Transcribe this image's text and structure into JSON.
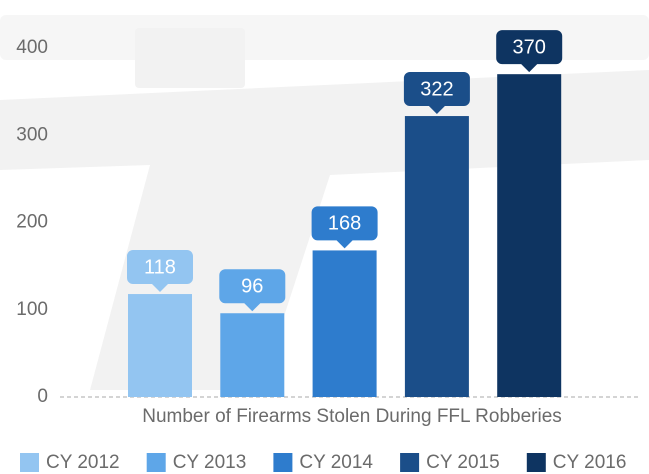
{
  "chart_data": {
    "type": "bar",
    "x_label": "Number of Firearms Stolen During FFL Robberies",
    "categories": [
      "CY 2012",
      "CY 2013",
      "CY 2014",
      "CY 2015",
      "CY 2016"
    ],
    "values": [
      118,
      96,
      168,
      322,
      370
    ],
    "colors": [
      "#93c5f1",
      "#5ea6e8",
      "#2e7ccd",
      "#1b4e89",
      "#0e3461"
    ],
    "ylim": [
      0,
      400
    ],
    "yticks": [
      0,
      100,
      200,
      300,
      400
    ],
    "grid": false,
    "legend": "bottom"
  }
}
